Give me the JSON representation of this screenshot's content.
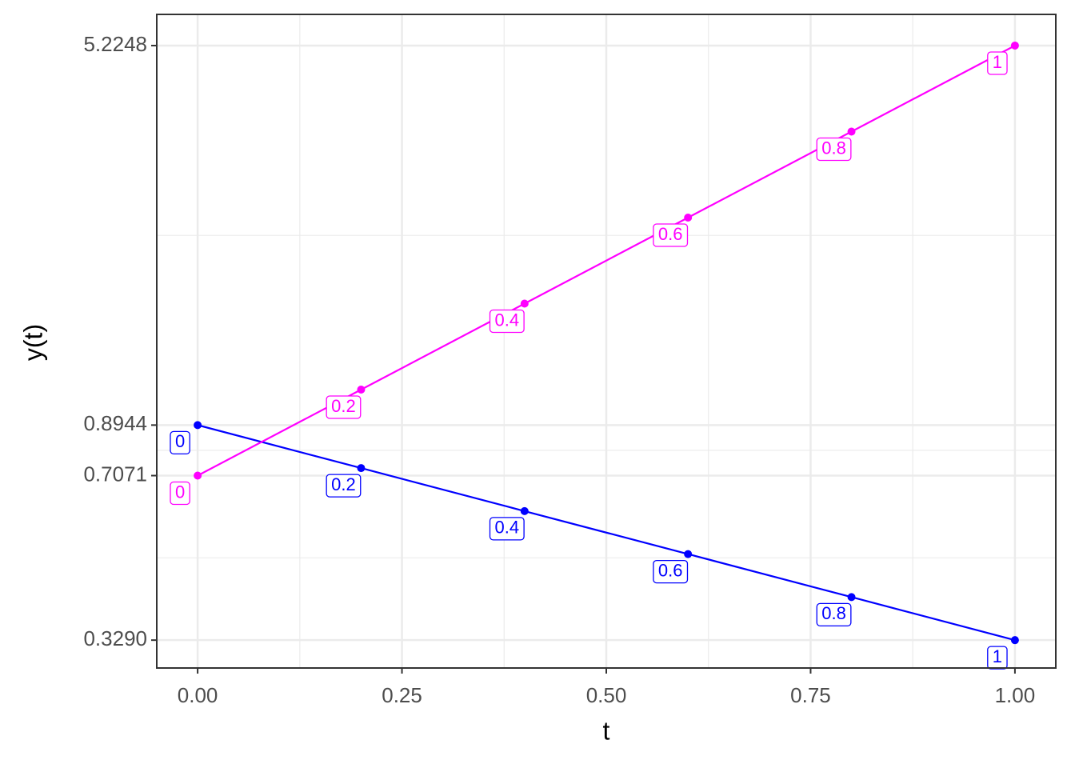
{
  "chart_data": {
    "type": "line",
    "x_label": "t",
    "y_label": "y(t)",
    "x": [
      0,
      0.2,
      0.4,
      0.6,
      0.8,
      1
    ],
    "series": [
      {
        "color": "#0000ff",
        "values": [
          0.8944,
          0.7323,
          0.5995,
          0.4909,
          0.4019,
          0.329
        ]
      },
      {
        "color": "#ff00ff",
        "values": [
          0.7071,
          1.0549,
          1.5737,
          2.3477,
          3.5023,
          5.2248
        ]
      }
    ],
    "xlim": [
      -0.05,
      1.05
    ],
    "xticks": [
      {
        "value": 0,
        "label": "0.00"
      },
      {
        "value": 0.25,
        "label": "0.25"
      },
      {
        "value": 0.5,
        "label": "0.50"
      },
      {
        "value": 0.75,
        "label": "0.75"
      },
      {
        "value": 1,
        "label": "1.00"
      }
    ],
    "ylim": [
      0.289,
      6.04
    ],
    "yticks": [
      {
        "value": 0.329,
        "label": "0.3290"
      },
      0.7071,
      0.8944,
      5.2248
    ],
    "log_y": true,
    "grid": true
  }
}
